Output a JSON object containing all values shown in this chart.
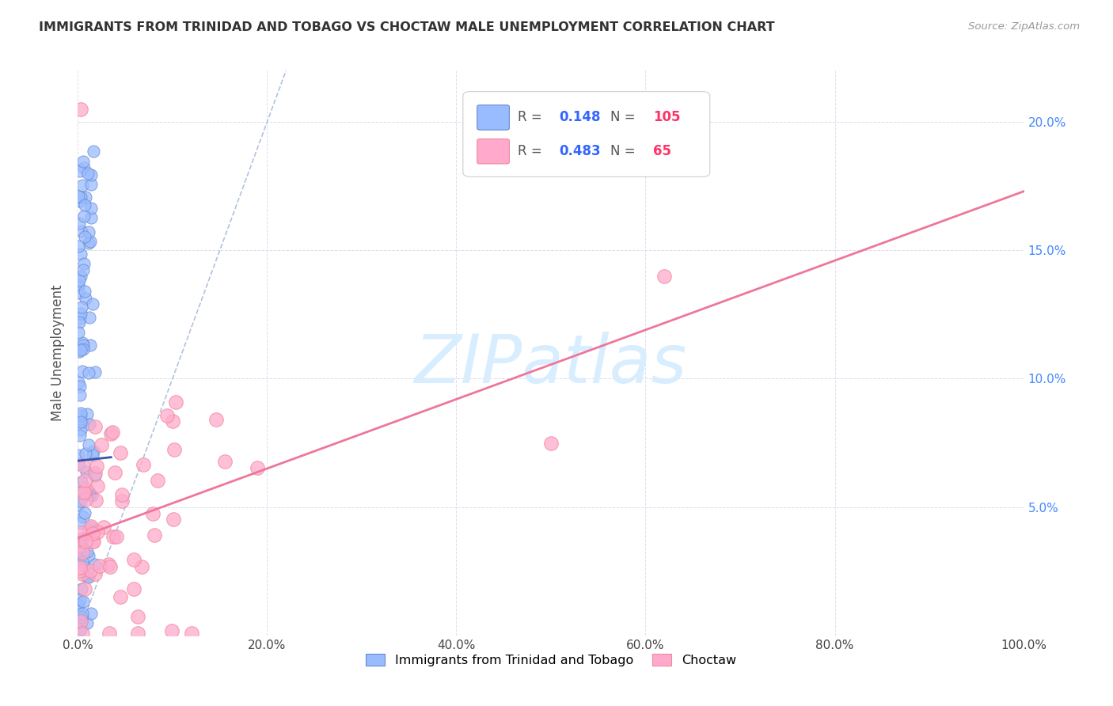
{
  "title": "IMMIGRANTS FROM TRINIDAD AND TOBAGO VS CHOCTAW MALE UNEMPLOYMENT CORRELATION CHART",
  "source": "Source: ZipAtlas.com",
  "ylabel": "Male Unemployment",
  "xlim": [
    0,
    1.0
  ],
  "ylim": [
    0,
    0.22
  ],
  "xtick_vals": [
    0.0,
    0.2,
    0.4,
    0.6,
    0.8,
    1.0
  ],
  "xticklabels": [
    "0.0%",
    "20.0%",
    "40.0%",
    "60.0%",
    "80.0%",
    "100.0%"
  ],
  "ytick_vals": [
    0.0,
    0.05,
    0.1,
    0.15,
    0.2
  ],
  "yticklabels_right": [
    "",
    "5.0%",
    "10.0%",
    "15.0%",
    "20.0%"
  ],
  "blue_color": "#99BBFF",
  "blue_edge_color": "#6688CC",
  "pink_color": "#FFAACC",
  "pink_edge_color": "#EE8899",
  "blue_trend_color": "#3355AA",
  "pink_trend_color": "#EE7799",
  "diag_color": "#AABBDD",
  "blue_R": "0.148",
  "blue_N": "105",
  "pink_R": "0.483",
  "pink_N": "65",
  "watermark_text": "ZIPatlas",
  "watermark_color": "#D8EEFF",
  "legend_label_blue": "Immigrants from Trinidad and Tobago",
  "legend_label_pink": "Choctaw",
  "legend_R_color": "#3366FF",
  "legend_N_color": "#FF3366",
  "legend_text_color": "#555555",
  "pink_trend_intercept": 0.038,
  "pink_trend_slope": 0.135,
  "blue_trend_intercept": 0.068,
  "blue_trend_slope": 0.04
}
